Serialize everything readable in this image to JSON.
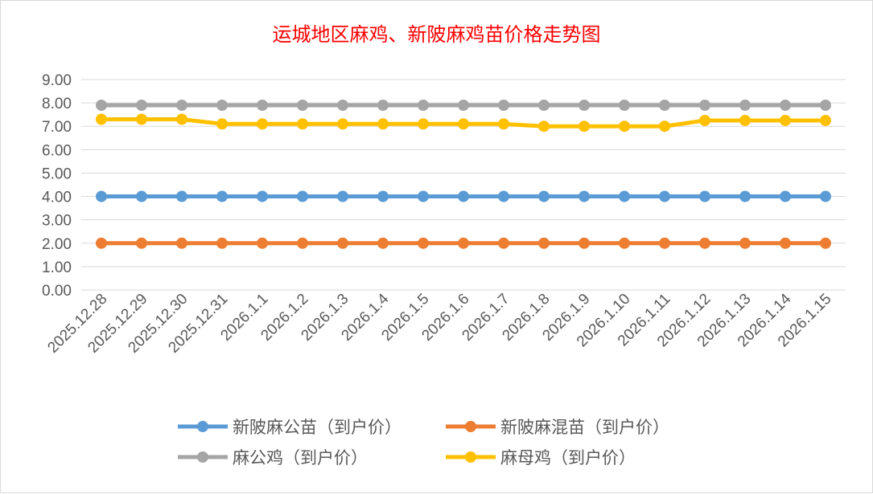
{
  "chart_data": {
    "type": "line",
    "title": "运城地区麻鸡、新陂麻鸡苗价格走势图",
    "categories": [
      "2025.12.28",
      "2025.12.29",
      "2025.12.30",
      "2025.12.31",
      "2026.1.1",
      "2026.1.2",
      "2026.1.3",
      "2026.1.4",
      "2026.1.5",
      "2026.1.6",
      "2026.1.7",
      "2026.1.8",
      "2026.1.9",
      "2026.1.10",
      "2026.1.11",
      "2026.1.12",
      "2026.1.13",
      "2026.1.14",
      "2026.1.15"
    ],
    "ylim": [
      0,
      9
    ],
    "yticks": [
      "0.00",
      "1.00",
      "2.00",
      "3.00",
      "4.00",
      "5.00",
      "6.00",
      "7.00",
      "8.00",
      "9.00"
    ],
    "grid": true,
    "legend": "bottom",
    "series": [
      {
        "name": "新陂麻公苗（到户价）",
        "color": "#5b9bd5",
        "values": [
          4,
          4,
          4,
          4,
          4,
          4,
          4,
          4,
          4,
          4,
          4,
          4,
          4,
          4,
          4,
          4,
          4,
          4,
          4
        ]
      },
      {
        "name": "新陂麻混苗（到户价）",
        "color": "#ed7d31",
        "values": [
          2,
          2,
          2,
          2,
          2,
          2,
          2,
          2,
          2,
          2,
          2,
          2,
          2,
          2,
          2,
          2,
          2,
          2,
          2
        ]
      },
      {
        "name": "麻公鸡（到户价）",
        "color": "#a5a5a5",
        "values": [
          7.9,
          7.9,
          7.9,
          7.9,
          7.9,
          7.9,
          7.9,
          7.9,
          7.9,
          7.9,
          7.9,
          7.9,
          7.9,
          7.9,
          7.9,
          7.9,
          7.9,
          7.9,
          7.9
        ]
      },
      {
        "name": "麻母鸡（到户价）",
        "color": "#ffc000",
        "values": [
          7.3,
          7.3,
          7.3,
          7.1,
          7.1,
          7.1,
          7.1,
          7.1,
          7.1,
          7.1,
          7.1,
          7.0,
          7.0,
          7.0,
          7.0,
          7.25,
          7.25,
          7.25,
          7.25
        ]
      }
    ]
  }
}
